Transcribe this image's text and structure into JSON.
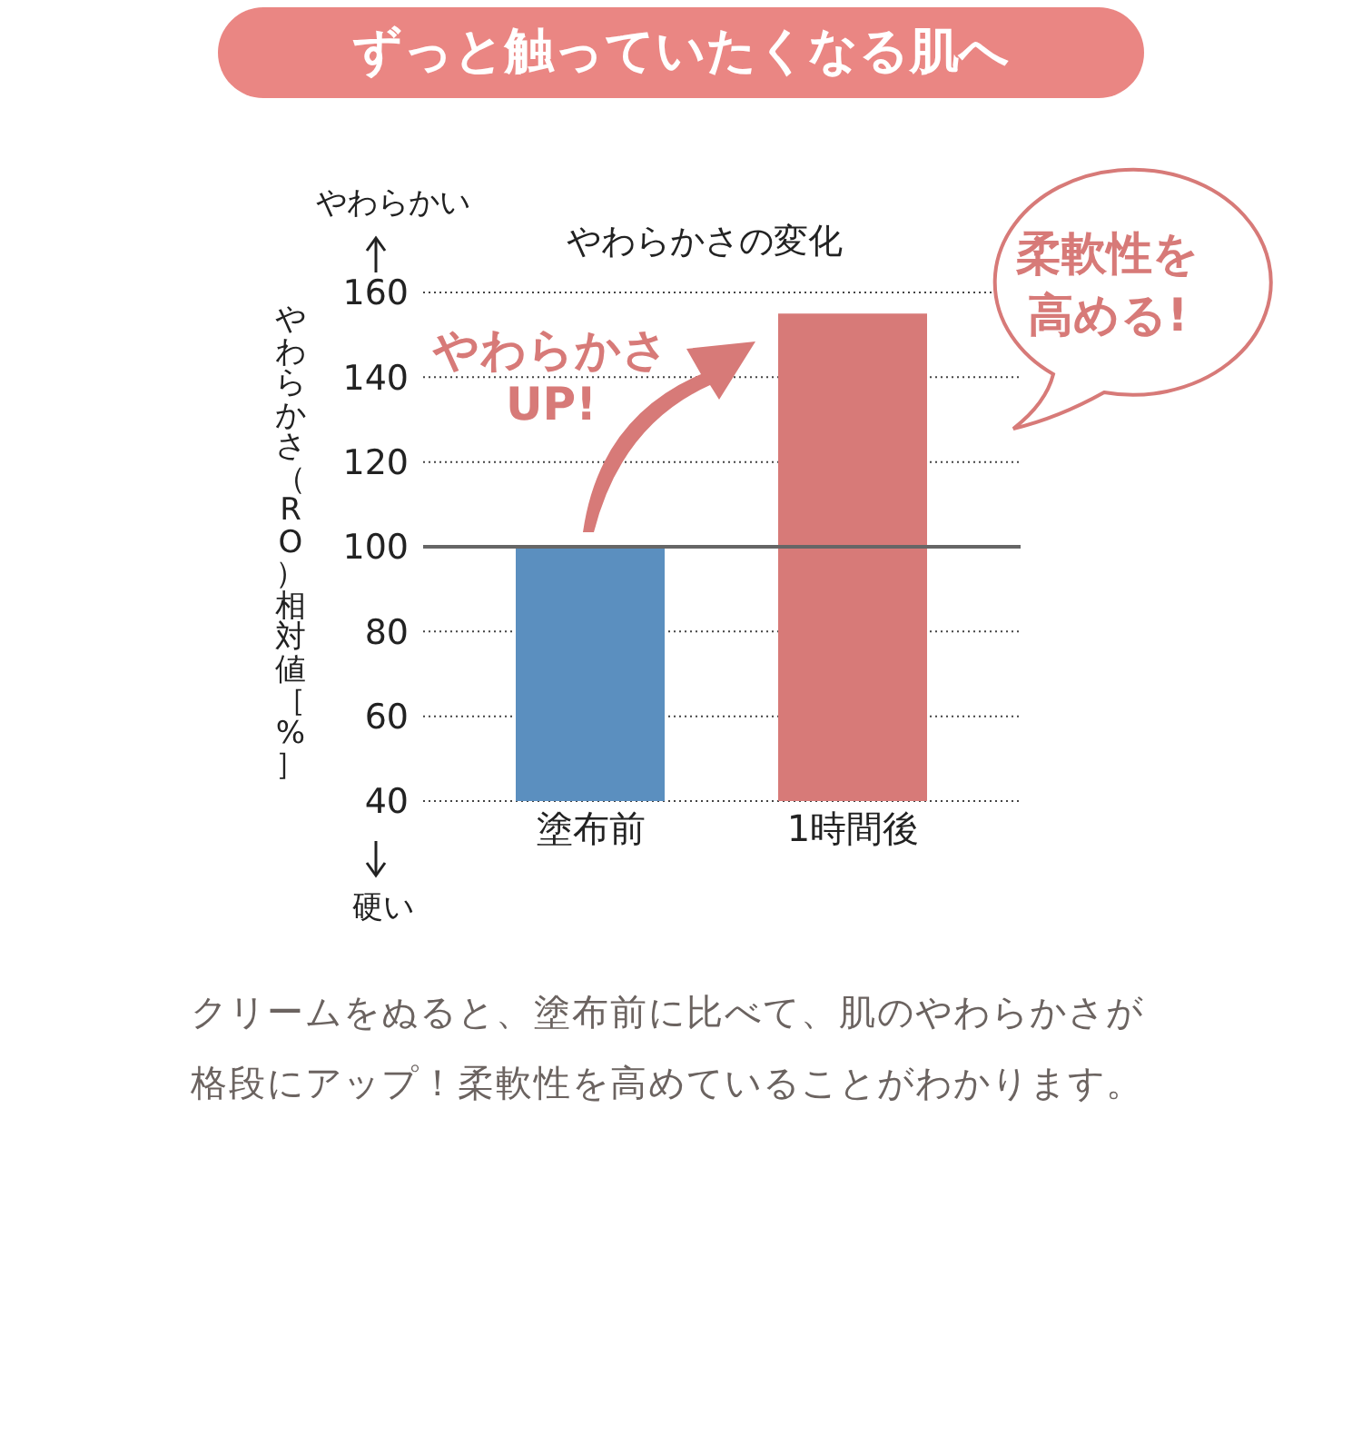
{
  "chart_data": {
    "type": "bar",
    "title": "ずっと触っていたくなる肌へ",
    "subtitle": "やわらかさの変化",
    "ylabel": "やわらかさ（RO）相対値［%］",
    "categories": [
      "塗布前",
      "1時間後"
    ],
    "values": [
      100,
      155
    ],
    "colors": [
      "#5b8fbf",
      "#d77a78"
    ],
    "ylim": [
      40,
      160
    ],
    "yticks": [
      40,
      60,
      80,
      100,
      120,
      140,
      160
    ],
    "grid": "y",
    "ref_lines": [
      {
        "axis": "y",
        "value": 100,
        "color": "#666666"
      }
    ],
    "annotations": [
      "やわらかい",
      "硬い",
      "やわらかさUP!",
      "柔軟性を高める!",
      "クリームをぬると、塗布前に比べて、肌のやわらかさが格段にアップ！柔軟性を高めていることがわかります。"
    ]
  }
}
